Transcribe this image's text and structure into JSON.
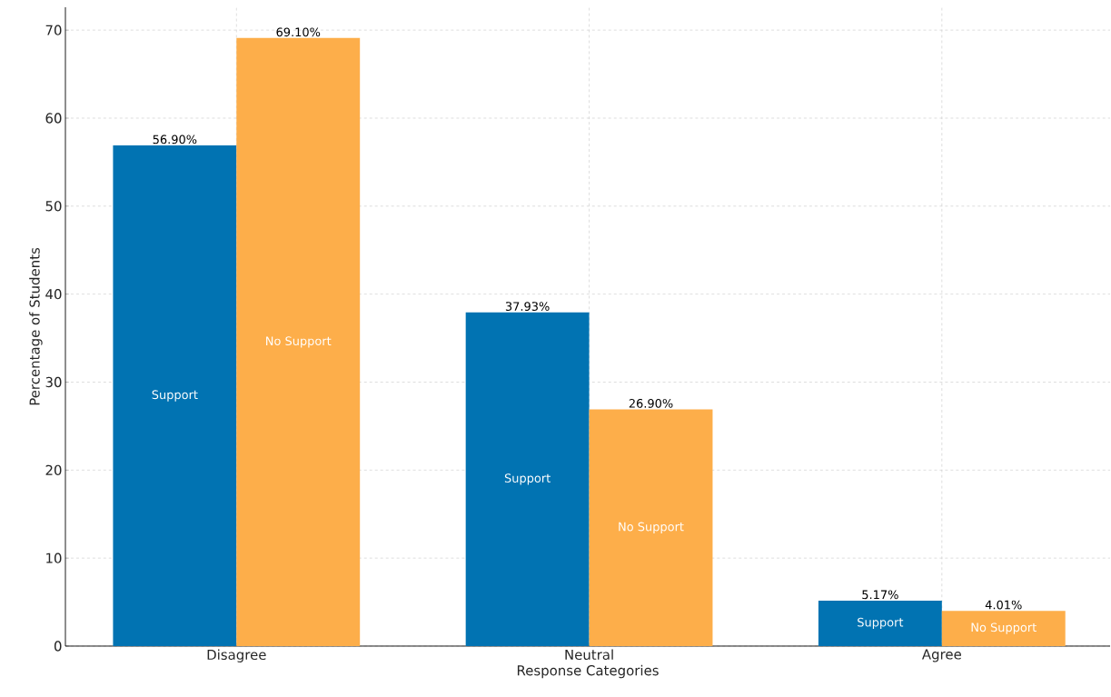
{
  "chart_data": {
    "type": "bar",
    "xlabel": "Response Categories",
    "ylabel": "Percentage of Students",
    "categories": [
      "Disagree",
      "Neutral",
      "Agree"
    ],
    "series": [
      {
        "name": "Support",
        "color": "#0173b2",
        "values": [
          56.9,
          37.93,
          5.17
        ],
        "value_labels": [
          "56.90%",
          "37.93%",
          "5.17%"
        ]
      },
      {
        "name": "No Support",
        "color": "#fdae4a",
        "values": [
          69.1,
          26.9,
          4.01
        ],
        "value_labels": [
          "69.10%",
          "26.90%",
          "4.01%"
        ]
      }
    ],
    "ylim": [
      0,
      72.6
    ],
    "yticks": [
      0,
      10,
      20,
      30,
      40,
      50,
      60,
      70
    ],
    "grid": true
  }
}
